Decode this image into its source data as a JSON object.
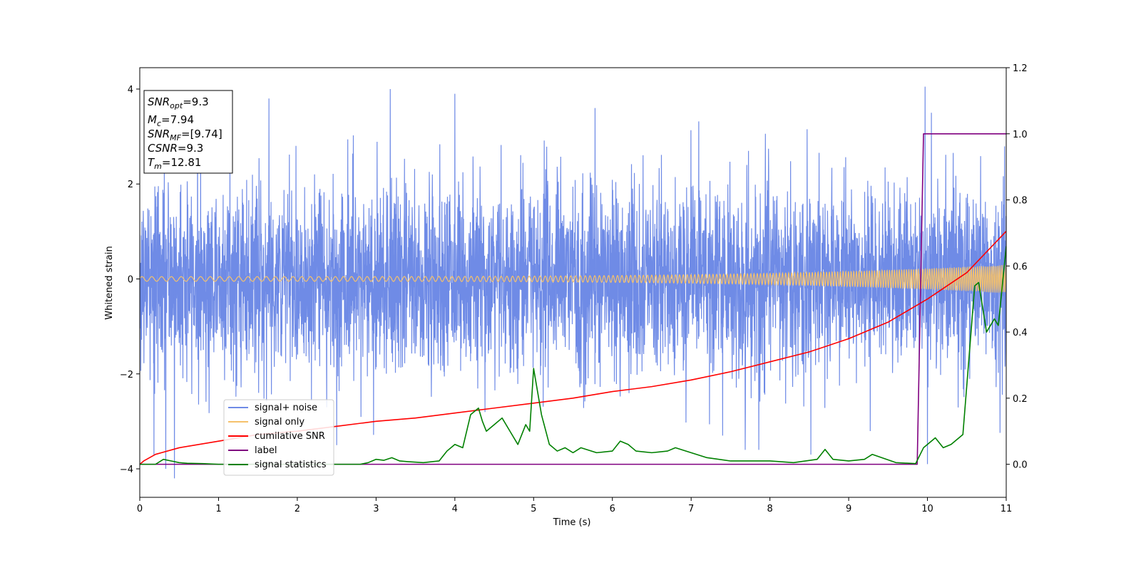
{
  "chart_data": {
    "type": "line",
    "title": "",
    "xlabel": "Time (s)",
    "ylabel": "Whitened strain",
    "y2label": "",
    "xlim": [
      0,
      11
    ],
    "ylim": [
      -4.6,
      4.45
    ],
    "y2lim": [
      -0.1,
      1.2
    ],
    "xticks": [
      0,
      1,
      2,
      3,
      4,
      5,
      6,
      7,
      8,
      9,
      10,
      11
    ],
    "yticks": [
      -4,
      -2,
      0,
      2,
      4
    ],
    "y2ticks": [
      0.0,
      0.2,
      0.4,
      0.6,
      0.8,
      1.0,
      1.2
    ],
    "y2tick_labels": [
      "0.0",
      "0.2",
      "0.4",
      "0.6",
      "0.8",
      "1.0",
      "1.2"
    ],
    "info_box": {
      "snr_opt": {
        "label": "SNR",
        "sub": "opt",
        "value": "=9.3"
      },
      "mc": {
        "label": "M",
        "sub": "c",
        "value": "=7.94"
      },
      "snr_mf": {
        "label": "SNR",
        "sub": "MF",
        "value": "=[9.74]"
      },
      "csnr": {
        "label": "CSNR",
        "value": "=9.3"
      },
      "tm": {
        "label": "T",
        "sub": "m",
        "value": "=12.81"
      }
    },
    "legend": {
      "placement": "lower-left",
      "entries": [
        {
          "label": "signal+ noise",
          "color": "#6f8be6"
        },
        {
          "label": "signal only",
          "color": "#f5c16b"
        },
        {
          "label": "cumilative SNR",
          "color": "#ff0000"
        },
        {
          "label": "label",
          "color": "#800080"
        },
        {
          "label": "signal statistics",
          "color": "#008000"
        }
      ]
    },
    "series": [
      {
        "name": "signal+ noise",
        "axis": "left",
        "color": "#6f8be6",
        "kind": "noise",
        "sigma": 1.0,
        "peak_samples": [
          [
            0.33,
            -4.0
          ],
          [
            0.44,
            -4.2
          ],
          [
            0.18,
            -3.7
          ],
          [
            3.18,
            4.0
          ],
          [
            1.64,
            3.8
          ],
          [
            4.0,
            3.9
          ],
          [
            5.78,
            3.6
          ],
          [
            9.97,
            4.05
          ],
          [
            10.05,
            3.5
          ],
          [
            8.52,
            -3.7
          ],
          [
            10.0,
            -3.9
          ],
          [
            2.5,
            -3.5
          ],
          [
            7.4,
            -3.3
          ]
        ]
      },
      {
        "name": "signal only",
        "axis": "left",
        "color": "#f5c16b",
        "kind": "chirp",
        "amplitude_start": 0.05,
        "amplitude_end": 0.3,
        "freq_start": 8,
        "freq_end": 40
      },
      {
        "name": "cumilative SNR",
        "axis": "right",
        "color": "#ff0000",
        "x": [
          0,
          0.05,
          0.2,
          0.5,
          1,
          1.5,
          2,
          2.5,
          3,
          3.5,
          4,
          4.5,
          5,
          5.5,
          6,
          6.5,
          7,
          7.5,
          8,
          8.5,
          9,
          9.5,
          10,
          10.5,
          11
        ],
        "y": [
          0.0,
          0.01,
          0.03,
          0.05,
          0.07,
          0.09,
          0.1,
          0.115,
          0.13,
          0.14,
          0.155,
          0.17,
          0.185,
          0.2,
          0.22,
          0.235,
          0.255,
          0.28,
          0.31,
          0.34,
          0.38,
          0.43,
          0.5,
          0.58,
          0.705
        ]
      },
      {
        "name": "label",
        "axis": "right",
        "color": "#800080",
        "x": [
          0,
          9.87,
          9.95,
          11
        ],
        "y": [
          0,
          0,
          1,
          1
        ]
      },
      {
        "name": "signal statistics",
        "axis": "right",
        "color": "#008000",
        "x": [
          0,
          0.2,
          0.3,
          0.4,
          0.5,
          0.6,
          0.8,
          1.0,
          2.0,
          2.8,
          2.9,
          3.0,
          3.1,
          3.2,
          3.3,
          3.4,
          3.6,
          3.8,
          3.9,
          4.0,
          4.1,
          4.2,
          4.3,
          4.35,
          4.4,
          4.5,
          4.6,
          4.7,
          4.8,
          4.9,
          4.95,
          5.0,
          5.05,
          5.1,
          5.2,
          5.3,
          5.4,
          5.5,
          5.6,
          5.8,
          6.0,
          6.1,
          6.2,
          6.3,
          6.5,
          6.7,
          6.8,
          7.0,
          7.2,
          7.5,
          8.0,
          8.3,
          8.6,
          8.7,
          8.8,
          9.0,
          9.2,
          9.3,
          9.6,
          9.85,
          9.95,
          10.1,
          10.2,
          10.3,
          10.45,
          10.6,
          10.65,
          10.75,
          10.85,
          10.9,
          11.0
        ],
        "y": [
          0.0,
          0.0,
          0.015,
          0.01,
          0.005,
          0.003,
          0.002,
          0.0,
          0.0,
          0.0,
          0.005,
          0.015,
          0.012,
          0.02,
          0.01,
          0.008,
          0.005,
          0.01,
          0.04,
          0.06,
          0.05,
          0.15,
          0.17,
          0.13,
          0.1,
          0.12,
          0.14,
          0.1,
          0.06,
          0.12,
          0.1,
          0.29,
          0.22,
          0.15,
          0.06,
          0.04,
          0.05,
          0.035,
          0.05,
          0.035,
          0.04,
          0.07,
          0.06,
          0.04,
          0.035,
          0.04,
          0.05,
          0.035,
          0.02,
          0.01,
          0.01,
          0.005,
          0.015,
          0.045,
          0.015,
          0.01,
          0.015,
          0.03,
          0.005,
          0.002,
          0.05,
          0.08,
          0.05,
          0.06,
          0.09,
          0.54,
          0.55,
          0.4,
          0.44,
          0.42,
          0.66
        ]
      }
    ]
  }
}
